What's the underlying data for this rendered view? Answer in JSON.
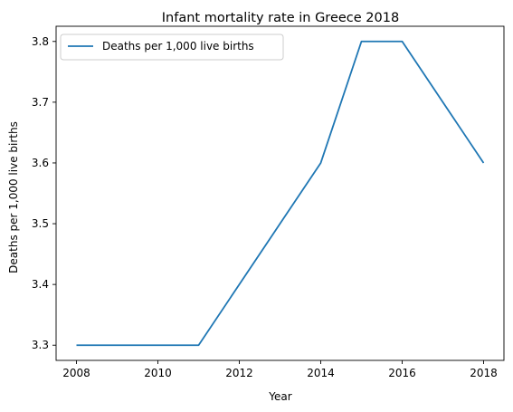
{
  "chart_data": {
    "type": "line",
    "title": "Infant mortality rate in Greece 2018",
    "xlabel": "Year",
    "ylabel": "Deaths per 1,000 live births",
    "x": [
      2008,
      2009,
      2010,
      2011,
      2012,
      2013,
      2014,
      2015,
      2016,
      2017,
      2018
    ],
    "series": [
      {
        "name": "Deaths per 1,000 live births",
        "color": "#1f77b4",
        "values": [
          3.3,
          3.3,
          3.3,
          3.3,
          3.4,
          3.5,
          3.6,
          3.8,
          3.8,
          3.7,
          3.6
        ]
      }
    ],
    "xlim": [
      2007.5,
      2018.5
    ],
    "ylim": [
      3.275,
      3.825
    ],
    "xticks": [
      "2008",
      "2010",
      "2012",
      "2014",
      "2016",
      "2018"
    ],
    "yticks": [
      "3.3",
      "3.4",
      "3.5",
      "3.6",
      "3.7",
      "3.8"
    ],
    "legend_position": "top-left",
    "grid": false
  }
}
